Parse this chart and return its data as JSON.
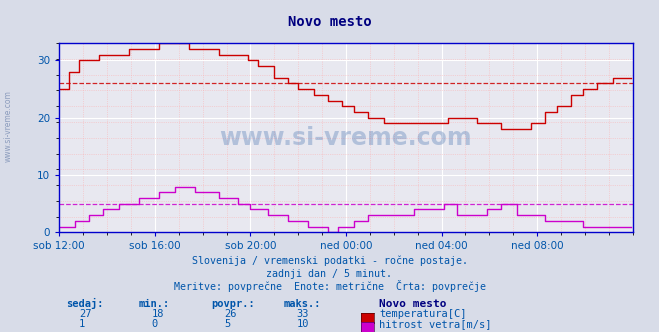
{
  "title": "Novo mesto",
  "bg_color": "#d8dce8",
  "plot_bg_color": "#e8e8f0",
  "grid_color_major": "#ffffff",
  "grid_color_minor": "#ffcccc",
  "axis_color": "#0000cc",
  "title_color": "#000080",
  "text_color": "#0055aa",
  "xlabel_ticks": [
    "sob 12:00",
    "sob 16:00",
    "sob 20:00",
    "ned 00:00",
    "ned 04:00",
    "ned 08:00"
  ],
  "xlim": [
    0,
    288
  ],
  "ylim": [
    0,
    33
  ],
  "yticks": [
    0,
    10,
    20,
    30
  ],
  "temp_avg": 26,
  "wind_avg": 5,
  "subtitle1": "Slovenija / vremenski podatki - ročne postaje.",
  "subtitle2": "zadnji dan / 5 minut.",
  "subtitle3": "Meritve: povprečne  Enote: metrične  Črta: povprečje",
  "legend_title": "Novo mesto",
  "legend_items": [
    {
      "label": "temperatura[C]",
      "color": "#cc0000"
    },
    {
      "label": "hitrost vetra[m/s]",
      "color": "#cc00cc"
    }
  ],
  "stats_headers": [
    "sedaj:",
    "min.:",
    "povpr.:",
    "maks.:"
  ],
  "stats_temp": [
    "27",
    "18",
    "26",
    "33"
  ],
  "stats_wind": [
    "1",
    "0",
    "5",
    "10"
  ],
  "watermark": "www.si-vreme.com",
  "temp_color": "#cc0000",
  "wind_color": "#cc00cc"
}
